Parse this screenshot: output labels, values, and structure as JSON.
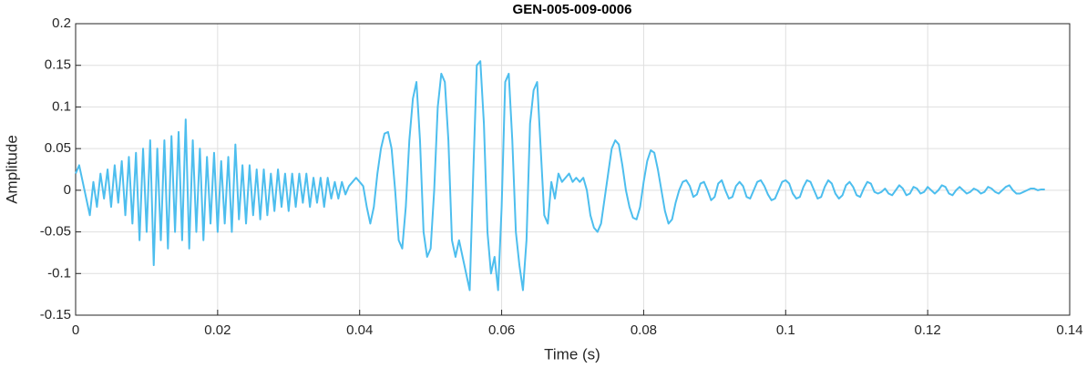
{
  "chart_data": {
    "type": "line",
    "title": "GEN-005-009-0006",
    "xlabel": "Time (s)",
    "ylabel": "Amplitude",
    "color": "#4dbeee",
    "grid": true,
    "xlim": [
      0,
      0.14
    ],
    "xticks": [
      0,
      0.02,
      0.04,
      0.06,
      0.08,
      0.1,
      0.12,
      0.14
    ],
    "ylim": [
      -0.15,
      0.2
    ],
    "yticks": [
      -0.15,
      -0.1,
      -0.05,
      0,
      0.05,
      0.1,
      0.15,
      0.2
    ],
    "x": [
      0,
      0.0005,
      0.001,
      0.0015,
      0.002,
      0.0025,
      0.003,
      0.0035,
      0.004,
      0.0045,
      0.005,
      0.0055,
      0.006,
      0.0065,
      0.007,
      0.0075,
      0.008,
      0.0085,
      0.009,
      0.0095,
      0.01,
      0.0105,
      0.011,
      0.0115,
      0.012,
      0.0125,
      0.013,
      0.0135,
      0.014,
      0.0145,
      0.015,
      0.0155,
      0.016,
      0.0165,
      0.017,
      0.0175,
      0.018,
      0.0185,
      0.019,
      0.0195,
      0.02,
      0.0205,
      0.021,
      0.0215,
      0.022,
      0.0225,
      0.023,
      0.0235,
      0.024,
      0.0245,
      0.025,
      0.0255,
      0.026,
      0.0265,
      0.027,
      0.0275,
      0.028,
      0.0285,
      0.029,
      0.0295,
      0.03,
      0.0305,
      0.031,
      0.0315,
      0.032,
      0.0325,
      0.033,
      0.0335,
      0.034,
      0.0345,
      0.035,
      0.0355,
      0.036,
      0.0365,
      0.037,
      0.0375,
      0.038,
      0.0385,
      0.039,
      0.0395,
      0.04,
      0.0405,
      0.041,
      0.0415,
      0.042,
      0.0425,
      0.043,
      0.0435,
      0.044,
      0.0445,
      0.045,
      0.0455,
      0.046,
      0.0465,
      0.047,
      0.0475,
      0.048,
      0.0485,
      0.049,
      0.0495,
      0.05,
      0.0505,
      0.051,
      0.0515,
      0.052,
      0.0525,
      0.053,
      0.0535,
      0.054,
      0.0545,
      0.055,
      0.0555,
      0.056,
      0.0565,
      0.057,
      0.0575,
      0.058,
      0.0585,
      0.059,
      0.0595,
      0.06,
      0.0605,
      0.061,
      0.0615,
      0.062,
      0.0625,
      0.063,
      0.0635,
      0.064,
      0.0645,
      0.065,
      0.0655,
      0.066,
      0.0665,
      0.067,
      0.0675,
      0.068,
      0.0685,
      0.069,
      0.0695,
      0.07,
      0.0705,
      0.071,
      0.0715,
      0.072,
      0.0725,
      0.073,
      0.0735,
      0.074,
      0.0745,
      0.075,
      0.0755,
      0.076,
      0.0765,
      0.077,
      0.0775,
      0.078,
      0.0785,
      0.079,
      0.0795,
      0.08,
      0.0805,
      0.081,
      0.0815,
      0.082,
      0.0825,
      0.083,
      0.0835,
      0.084,
      0.0845,
      0.085,
      0.0855,
      0.086,
      0.0865,
      0.087,
      0.0875,
      0.088,
      0.0885,
      0.089,
      0.0895,
      0.09,
      0.0905,
      0.091,
      0.0915,
      0.092,
      0.0925,
      0.093,
      0.0935,
      0.094,
      0.0945,
      0.095,
      0.0955,
      0.096,
      0.0965,
      0.097,
      0.0975,
      0.098,
      0.0985,
      0.099,
      0.0995,
      0.1,
      0.1005,
      0.101,
      0.1015,
      0.102,
      0.1025,
      0.103,
      0.1035,
      0.104,
      0.1045,
      0.105,
      0.1055,
      0.106,
      0.1065,
      0.107,
      0.1075,
      0.108,
      0.1085,
      0.109,
      0.1095,
      0.11,
      0.1105,
      0.111,
      0.1115,
      0.112,
      0.1125,
      0.113,
      0.1135,
      0.114,
      0.1145,
      0.115,
      0.1155,
      0.116,
      0.1165,
      0.117,
      0.1175,
      0.118,
      0.1185,
      0.119,
      0.1195,
      0.12,
      0.1205,
      0.121,
      0.1215,
      0.122,
      0.1225,
      0.123,
      0.1235,
      0.124,
      0.1245,
      0.125,
      0.1255,
      0.126,
      0.1265,
      0.127,
      0.1275,
      0.128,
      0.1285,
      0.129,
      0.1295,
      0.13,
      0.1305,
      0.131,
      0.1315,
      0.132,
      0.1325,
      0.133,
      0.1335,
      0.134,
      0.1345,
      0.135,
      0.1355,
      0.136,
      0.1365
    ],
    "values": [
      0.02,
      0.03,
      0.01,
      -0.01,
      -0.03,
      0.01,
      -0.02,
      0.02,
      -0.01,
      0.025,
      -0.02,
      0.03,
      -0.015,
      0.035,
      -0.03,
      0.04,
      -0.04,
      0.045,
      -0.06,
      0.05,
      -0.05,
      0.06,
      -0.09,
      0.05,
      -0.06,
      0.06,
      -0.07,
      0.065,
      -0.05,
      0.07,
      -0.06,
      0.085,
      -0.07,
      0.06,
      -0.05,
      0.05,
      -0.06,
      0.04,
      -0.04,
      0.045,
      -0.05,
      0.035,
      -0.04,
      0.04,
      -0.05,
      0.055,
      -0.035,
      0.03,
      -0.04,
      0.03,
      -0.03,
      0.025,
      -0.035,
      0.025,
      -0.03,
      0.02,
      -0.025,
      0.025,
      -0.02,
      0.02,
      -0.025,
      0.02,
      -0.02,
      0.02,
      -0.015,
      0.02,
      -0.02,
      0.015,
      -0.015,
      0.015,
      -0.02,
      0.015,
      -0.01,
      0.01,
      -0.01,
      0.01,
      -0.005,
      0.005,
      0.01,
      0.015,
      0.01,
      0.005,
      -0.02,
      -0.04,
      -0.02,
      0.02,
      0.05,
      0.068,
      0.07,
      0.05,
      0,
      -0.06,
      -0.07,
      -0.02,
      0.06,
      0.11,
      0.13,
      0.06,
      -0.05,
      -0.08,
      -0.07,
      0,
      0.1,
      0.14,
      0.13,
      0.06,
      -0.06,
      -0.08,
      -0.06,
      -0.08,
      -0.1,
      -0.12,
      0.02,
      0.15,
      0.155,
      0.08,
      -0.05,
      -0.1,
      -0.08,
      -0.12,
      -0.02,
      0.13,
      0.14,
      0.06,
      -0.05,
      -0.09,
      -0.12,
      -0.06,
      0.08,
      0.12,
      0.13,
      0.05,
      -0.03,
      -0.04,
      0.01,
      -0.01,
      0.02,
      0.01,
      0.015,
      0.02,
      0.01,
      0.015,
      0.01,
      0.015,
      0,
      -0.03,
      -0.045,
      -0.05,
      -0.04,
      -0.01,
      0.02,
      0.05,
      0.06,
      0.055,
      0.03,
      0,
      -0.02,
      -0.033,
      -0.035,
      -0.02,
      0.01,
      0.035,
      0.048,
      0.045,
      0.025,
      0,
      -0.025,
      -0.04,
      -0.035,
      -0.015,
      0,
      0.01,
      0.012,
      0.005,
      -0.008,
      -0.005,
      0.008,
      0.01,
      0,
      -0.012,
      -0.008,
      0.008,
      0.012,
      0,
      -0.01,
      -0.008,
      0.005,
      0.01,
      0.005,
      -0.008,
      -0.01,
      0,
      0.01,
      0.012,
      0.005,
      -0.005,
      -0.012,
      -0.01,
      0,
      0.01,
      0.012,
      0.008,
      -0.004,
      -0.01,
      -0.008,
      0.004,
      0.012,
      0.01,
      0,
      -0.01,
      -0.008,
      0.004,
      0.012,
      0.008,
      -0.004,
      -0.01,
      -0.006,
      0.006,
      0.01,
      0.004,
      -0.006,
      -0.008,
      0.002,
      0.01,
      0.008,
      -0.002,
      -0.004,
      -0.002,
      0.002,
      -0.004,
      -0.006,
      0,
      0.006,
      0.002,
      -0.006,
      -0.004,
      0.004,
      0.002,
      -0.004,
      -0.002,
      0.004,
      0,
      -0.004,
      0,
      0.006,
      0.004,
      -0.004,
      -0.006,
      0,
      0.004,
      0,
      -0.004,
      -0.002,
      0.002,
      0,
      -0.004,
      -0.002,
      0.004,
      0.002,
      -0.002,
      -0.004,
      0,
      0.004,
      0.006,
      0,
      -0.004,
      -0.004,
      -0.002,
      0,
      0.002,
      0.002,
      0,
      0.001,
      0.001
    ]
  }
}
